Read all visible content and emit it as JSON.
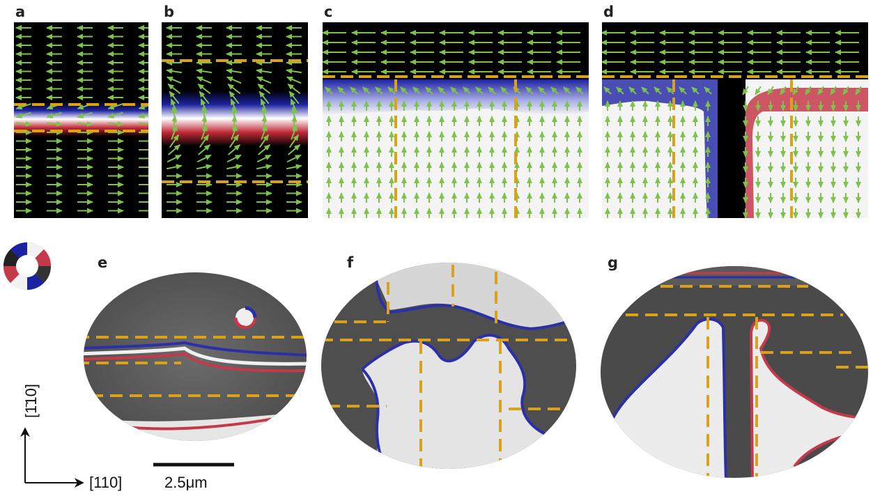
{
  "figure": {
    "panel_labels": [
      "a",
      "b",
      "c",
      "d",
      "e",
      "f",
      "g"
    ],
    "axes": {
      "x_label": "[110]",
      "y_label": "[1̄10]"
    },
    "scale_bar": {
      "label": "2.5μm"
    },
    "colors": {
      "arrow": "#7ec24a",
      "guide_dash": "#d9a21a",
      "wall_blue": "#2b2fa8",
      "wall_red": "#c43a4a",
      "background_dark": "#000000"
    },
    "color_wheel": {
      "description_icon": "color-wheel-icon"
    }
  }
}
